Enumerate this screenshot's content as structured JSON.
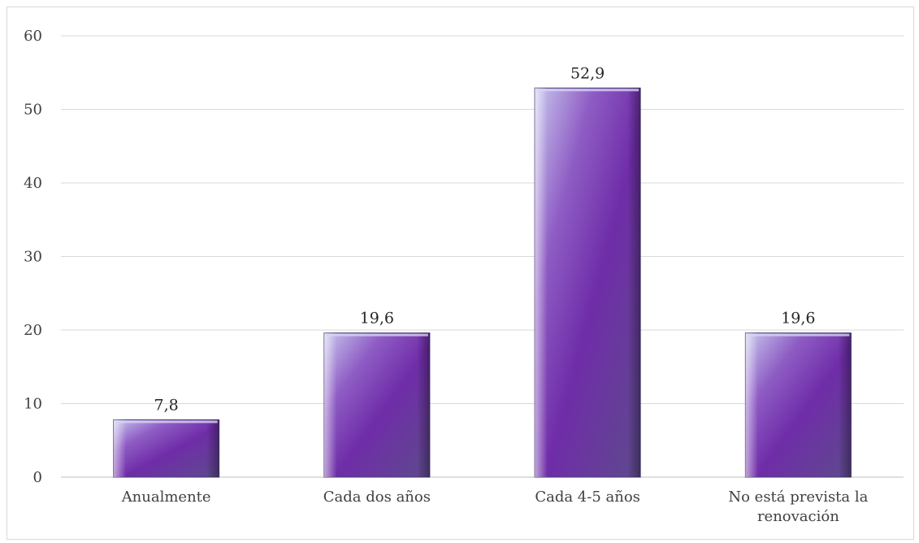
{
  "chart_data": {
    "type": "bar",
    "categories": [
      "Anualmente",
      "Cada dos años",
      "Cada 4-5 años",
      "No está prevista la renovación"
    ],
    "category_lines": [
      [
        "Anualmente"
      ],
      [
        "Cada dos años"
      ],
      [
        "Cada 4-5 años"
      ],
      [
        "No está prevista la",
        "renovación"
      ]
    ],
    "values": [
      7.8,
      19.6,
      52.9,
      19.6
    ],
    "value_labels": [
      "7,8",
      "19,6",
      "52,9",
      "19,6"
    ],
    "yticks": [
      0,
      10,
      20,
      30,
      40,
      50,
      60
    ],
    "ylim": [
      0,
      60
    ],
    "grid": true,
    "legend": "none",
    "colors": {
      "bar_dark": "#6f2da8",
      "bar_light": "#b9b8e6",
      "bar_shadow": "#4a3a78",
      "grid": "#d9d9d9",
      "axis": "#bfbfbf"
    }
  }
}
